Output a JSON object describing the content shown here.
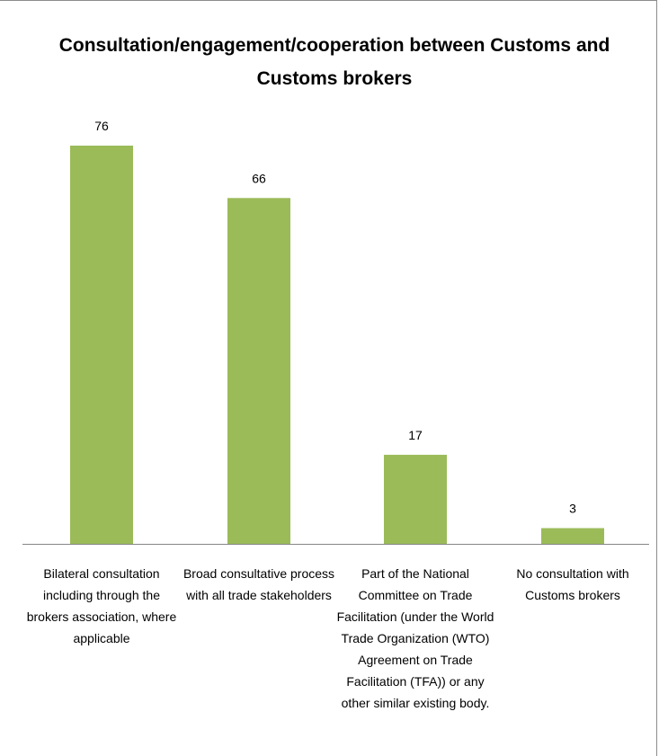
{
  "chart_data": {
    "type": "bar",
    "title": "Consultation/engagement/cooperation between Customs and Customs brokers",
    "title_lines": [
      "Consultation/engagement/cooperation  between Customs and",
      "Customs brokers"
    ],
    "categories": [
      "Bilateral consultation including through the brokers association, where applicable",
      "Broad consultative process with all trade stakeholders",
      "Part of the National Committee on Trade Facilitation (under the World Trade Organization (WTO) Agreement on Trade Facilitation (TFA)) or any other similar existing body.",
      "No consultation with Customs brokers"
    ],
    "category_lines": [
      [
        "Bilateral consultation",
        "including through the",
        "brokers association, where",
        "applicable"
      ],
      [
        "Broad consultative process",
        "with all trade stakeholders"
      ],
      [
        "Part of the National",
        "Committee on Trade",
        "Facilitation (under the World",
        "Trade Organization (WTO)",
        "Agreement on Trade",
        "Facilitation (TFA)) or any",
        "other similar existing body."
      ],
      [
        "No consultation with",
        "Customs brokers"
      ]
    ],
    "values": [
      76,
      66,
      17,
      3
    ],
    "xlabel": "",
    "ylabel": "",
    "ylim": [
      0,
      76
    ],
    "grid": false,
    "legend": "none",
    "bar_color": "#9bbb59",
    "axis_color": "#868686"
  }
}
